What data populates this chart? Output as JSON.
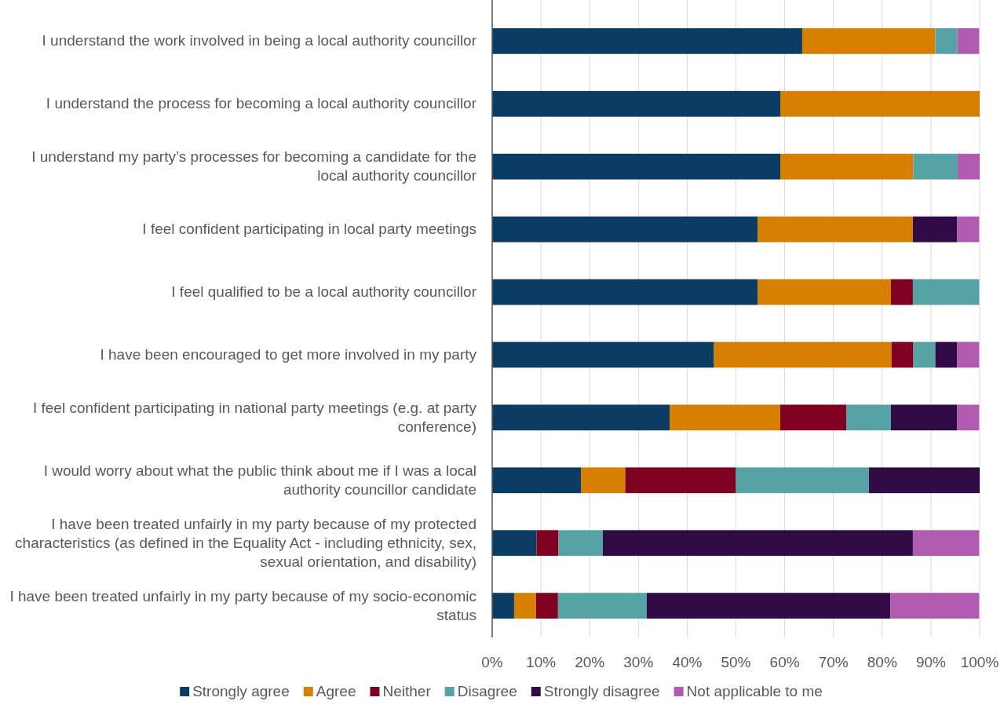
{
  "chart_data": {
    "type": "bar",
    "orientation": "horizontal",
    "stacked": true,
    "categories": [
      "I understand the work involved in being a local authority councillor",
      "I understand the process for becoming a local authority councillor",
      "I understand my party’s processes for becoming a candidate for the local authority councillor",
      "I feel confident participating in local party meetings",
      "I feel qualified to be a local authority councillor",
      "I have been encouraged to get more involved in my party",
      "I feel confident participating in national party meetings (e.g. at party conference)",
      "I would worry about what the public think about me if I was a local authority councillor candidate",
      "I have been treated unfairly in my party because of my protected characteristics (as defined in the Equality Act - including ethnicity, sex, sexual orientation, and disability)",
      "I have been treated unfairly in my party because of my socio-economic status"
    ],
    "series": [
      {
        "name": "Strongly agree",
        "color": "#0b3d64",
        "values": [
          63.6,
          59.1,
          59.1,
          54.5,
          54.5,
          45.5,
          36.4,
          18.2,
          9.1,
          4.5
        ]
      },
      {
        "name": "Agree",
        "color": "#d67f00",
        "values": [
          27.3,
          40.9,
          27.3,
          31.8,
          27.3,
          36.4,
          22.7,
          9.1,
          0,
          4.5
        ]
      },
      {
        "name": "Neither",
        "color": "#7f0020",
        "values": [
          0,
          0,
          0,
          0,
          4.5,
          4.5,
          13.6,
          22.7,
          4.5,
          4.5
        ]
      },
      {
        "name": "Disagree",
        "color": "#56a3a6",
        "values": [
          4.5,
          0,
          9.1,
          0,
          13.6,
          4.5,
          9.1,
          27.3,
          9.1,
          18.2
        ]
      },
      {
        "name": "Strongly disagree",
        "color": "#300b45",
        "values": [
          0,
          0,
          0,
          9.1,
          0,
          4.5,
          13.6,
          22.7,
          63.6,
          50
        ]
      },
      {
        "name": "Not applicable to me",
        "color": "#b05bb0",
        "values": [
          4.5,
          0,
          4.5,
          4.5,
          0,
          4.5,
          4.5,
          0,
          13.6,
          18.2
        ]
      }
    ],
    "xlim": [
      0,
      100
    ],
    "xticks": [
      {
        "value": 0,
        "label": "0%"
      },
      {
        "value": 10,
        "label": "10%"
      },
      {
        "value": 20,
        "label": "20%"
      },
      {
        "value": 30,
        "label": "30%"
      },
      {
        "value": 40,
        "label": "40%"
      },
      {
        "value": 50,
        "label": "50%"
      },
      {
        "value": 60,
        "label": "60%"
      },
      {
        "value": 70,
        "label": "70%"
      },
      {
        "value": 80,
        "label": "80%"
      },
      {
        "value": 90,
        "label": "90%"
      },
      {
        "value": 100,
        "label": "100%"
      }
    ],
    "grid": "x",
    "legend": "bottom"
  }
}
